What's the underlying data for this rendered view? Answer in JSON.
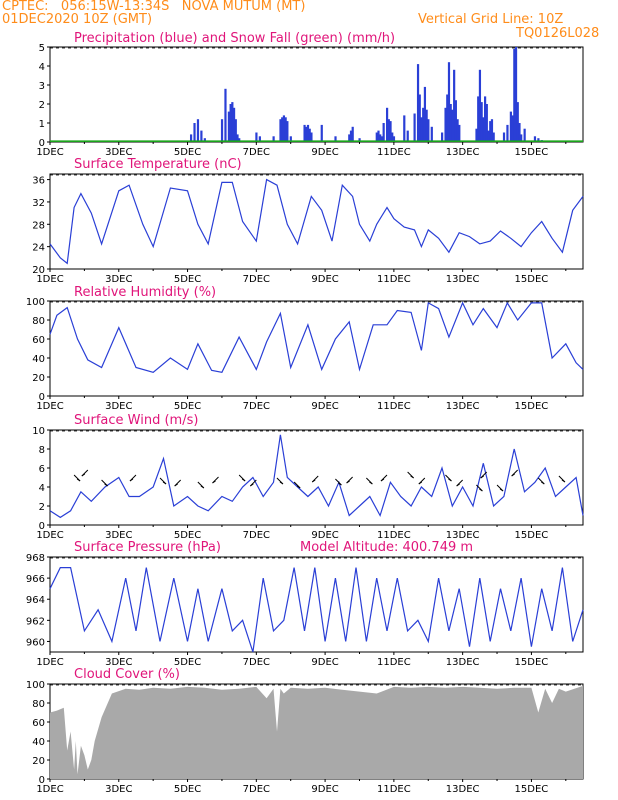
{
  "header": {
    "station": "CPTEC:   056:15W-13:34S   NOVA MUTUM (MT)",
    "run": "01DEC2020 10Z (GMT)",
    "grid_note": "Vertical Grid Line: 10Z",
    "code": "TQ0126L028"
  },
  "colors": {
    "header": "#ff8c1a",
    "title": "#e0157a",
    "line": "#2a3fd6",
    "snow": "#1aa51a",
    "cloud": "#a9a9a9"
  },
  "chart_data": [
    {
      "type": "bar",
      "title": "Precipitation (blue) and Snow Fall (green) (mm/h)",
      "xlabel": "",
      "ylabel": "",
      "ylim": [
        0,
        5
      ],
      "yticks": [
        0,
        1,
        2,
        3,
        4,
        5
      ],
      "xticks": [
        "1DEC",
        "3DEC",
        "5DEC",
        "7DEC",
        "9DEC",
        "11DEC",
        "13DEC",
        "15DEC"
      ],
      "x_day_range": [
        0,
        15.5
      ],
      "series": [
        {
          "name": "Precipitation",
          "x": [
            4.1,
            4.2,
            4.3,
            4.4,
            4.5,
            5.0,
            5.1,
            5.2,
            5.25,
            5.3,
            5.35,
            5.4,
            5.45,
            5.5,
            6.0,
            6.1,
            6.5,
            6.7,
            6.75,
            6.8,
            6.85,
            6.9,
            7.0,
            7.4,
            7.45,
            7.5,
            7.55,
            7.6,
            7.9,
            8.3,
            8.7,
            8.75,
            8.8,
            9.0,
            9.5,
            9.55,
            9.6,
            9.65,
            9.7,
            9.8,
            9.85,
            9.9,
            9.95,
            10.0,
            10.3,
            10.4,
            10.6,
            10.7,
            10.75,
            10.8,
            10.85,
            10.9,
            10.95,
            11.0,
            11.1,
            11.4,
            11.5,
            11.55,
            11.6,
            11.65,
            11.7,
            11.75,
            11.8,
            11.85,
            11.9,
            12.4,
            12.45,
            12.5,
            12.55,
            12.6,
            12.65,
            12.7,
            12.75,
            12.8,
            12.85,
            12.9,
            13.2,
            13.3,
            13.4,
            13.45,
            13.5,
            13.55,
            13.6,
            13.65,
            13.7,
            13.8,
            14.1,
            14.2,
            14.3
          ],
          "values": [
            0.4,
            1.0,
            1.2,
            0.6,
            0.2,
            1.2,
            2.8,
            1.6,
            2.0,
            2.1,
            1.8,
            1.2,
            0.4,
            0.2,
            0.5,
            0.3,
            0.3,
            1.2,
            1.3,
            1.4,
            1.3,
            1.1,
            0.3,
            0.9,
            0.8,
            0.9,
            0.7,
            0.5,
            0.9,
            0.3,
            0.4,
            0.6,
            0.8,
            0.2,
            0.5,
            0.6,
            0.4,
            0.3,
            1.0,
            1.8,
            1.2,
            1.1,
            0.5,
            0.3,
            1.4,
            0.6,
            1.5,
            4.1,
            2.5,
            1.3,
            1.8,
            2.9,
            1.7,
            1.2,
            0.8,
            0.5,
            1.8,
            2.5,
            4.2,
            2.0,
            1.7,
            3.8,
            2.2,
            1.2,
            0.9,
            0.7,
            2.4,
            3.8,
            2.1,
            1.3,
            2.4,
            2.0,
            0.6,
            1.1,
            1.2,
            0.5,
            0.5,
            0.9,
            1.6,
            1.4,
            4.9,
            5.0,
            2.1,
            1.0,
            0.4,
            0.7,
            0.3,
            0.2,
            0.1
          ]
        },
        {
          "name": "Snow Fall",
          "values": [
            0
          ]
        }
      ]
    },
    {
      "type": "line",
      "title": "Surface Temperature (nC)",
      "ylim": [
        20,
        37
      ],
      "yticks": [
        20,
        24,
        28,
        32,
        36
      ],
      "xticks": [
        "1DEC",
        "3DEC",
        "5DEC",
        "7DEC",
        "9DEC",
        "11DEC",
        "13DEC",
        "15DEC"
      ],
      "x": [
        0,
        0.3,
        0.5,
        0.7,
        0.9,
        1.2,
        1.5,
        2.0,
        2.3,
        2.7,
        3.0,
        3.5,
        4.0,
        4.3,
        4.6,
        5.0,
        5.3,
        5.6,
        6.0,
        6.3,
        6.6,
        6.9,
        7.2,
        7.6,
        7.9,
        8.2,
        8.5,
        8.8,
        9.0,
        9.3,
        9.5,
        9.8,
        10.0,
        10.3,
        10.6,
        10.8,
        11.0,
        11.3,
        11.6,
        11.9,
        12.2,
        12.5,
        12.8,
        13.1,
        13.4,
        13.7,
        14.0,
        14.3,
        14.6,
        14.9,
        15.2,
        15.5
      ],
      "values": [
        24.5,
        22,
        21,
        31,
        33.5,
        30,
        24.5,
        34,
        35,
        28,
        24,
        34.5,
        34,
        28,
        24.5,
        35.5,
        35.5,
        28.5,
        25,
        36,
        35,
        28,
        24.5,
        33,
        30.5,
        25,
        35,
        33,
        28,
        25,
        28,
        31,
        29,
        27.5,
        27,
        24,
        27,
        25.5,
        23,
        26.5,
        25.8,
        24.5,
        25,
        26.8,
        25.5,
        24,
        26.5,
        28.5,
        25.5,
        23,
        30.5,
        33
      ]
    },
    {
      "type": "line",
      "title": "Relative Humidity (%)",
      "ylim": [
        0,
        100
      ],
      "yticks": [
        0,
        20,
        40,
        60,
        80,
        100
      ],
      "xticks": [
        "1DEC",
        "3DEC",
        "5DEC",
        "7DEC",
        "9DEC",
        "11DEC",
        "13DEC",
        "15DEC"
      ],
      "x": [
        0,
        0.2,
        0.5,
        0.8,
        1.1,
        1.5,
        2.0,
        2.5,
        3.0,
        3.5,
        4.0,
        4.3,
        4.7,
        5.0,
        5.5,
        6.0,
        6.3,
        6.7,
        7.0,
        7.5,
        7.9,
        8.3,
        8.7,
        9.0,
        9.4,
        9.8,
        10.1,
        10.5,
        10.8,
        11.0,
        11.3,
        11.6,
        12.0,
        12.3,
        12.6,
        13.0,
        13.3,
        13.6,
        14.0,
        14.3,
        14.6,
        15.0,
        15.3,
        15.5
      ],
      "values": [
        65,
        85,
        93,
        60,
        38,
        30,
        72,
        30,
        25,
        40,
        28,
        55,
        27,
        25,
        62,
        28,
        57,
        87,
        30,
        75,
        28,
        60,
        78,
        28,
        75,
        75,
        90,
        88,
        48,
        98,
        92,
        62,
        98,
        75,
        92,
        72,
        98,
        80,
        98,
        98,
        40,
        55,
        35,
        28
      ]
    },
    {
      "type": "line",
      "title": "Surface Wind (m/s)",
      "ylim": [
        0,
        10
      ],
      "yticks": [
        0,
        2,
        4,
        6,
        8,
        10
      ],
      "xticks": [
        "1DEC",
        "3DEC",
        "5DEC",
        "7DEC",
        "9DEC",
        "11DEC",
        "13DEC",
        "15DEC"
      ],
      "x": [
        0,
        0.3,
        0.6,
        0.9,
        1.2,
        1.6,
        2.0,
        2.3,
        2.6,
        3.0,
        3.3,
        3.6,
        4.0,
        4.3,
        4.6,
        5.0,
        5.3,
        5.6,
        5.9,
        6.2,
        6.5,
        6.7,
        6.9,
        7.2,
        7.5,
        7.8,
        8.1,
        8.4,
        8.7,
        9.0,
        9.3,
        9.6,
        9.9,
        10.2,
        10.5,
        10.8,
        11.1,
        11.4,
        11.7,
        12.0,
        12.3,
        12.6,
        12.9,
        13.2,
        13.5,
        13.8,
        14.1,
        14.4,
        14.7,
        15.0,
        15.3,
        15.5
      ],
      "values": [
        1.5,
        0.8,
        1.5,
        3.5,
        2.5,
        4,
        5,
        3,
        3,
        4,
        7,
        2,
        3,
        2,
        1.5,
        3,
        2.5,
        4,
        5,
        3,
        4.5,
        9.5,
        5,
        4,
        3,
        4,
        2,
        4.5,
        1,
        2,
        3,
        1,
        4.5,
        3,
        2,
        4,
        3,
        6,
        2,
        4,
        2,
        6.5,
        2,
        3,
        8,
        3.5,
        4.5,
        6,
        3,
        4,
        5,
        1
      ]
    },
    {
      "type": "line",
      "title": "Surface Pressure (hPa)",
      "ylim": [
        959,
        968
      ],
      "yticks": [
        960,
        962,
        964,
        966,
        968
      ],
      "xticks": [
        "1DEC",
        "3DEC",
        "5DEC",
        "7DEC",
        "9DEC",
        "11DEC",
        "13DEC",
        "15DEC"
      ],
      "x": [
        0,
        0.3,
        0.6,
        1.0,
        1.4,
        1.8,
        2.2,
        2.5,
        2.8,
        3.2,
        3.6,
        4.0,
        4.3,
        4.6,
        5.0,
        5.3,
        5.6,
        5.9,
        6.2,
        6.5,
        6.8,
        7.1,
        7.4,
        7.7,
        8.0,
        8.3,
        8.6,
        8.9,
        9.2,
        9.5,
        9.8,
        10.1,
        10.4,
        10.7,
        11.0,
        11.3,
        11.6,
        11.9,
        12.2,
        12.5,
        12.8,
        13.1,
        13.4,
        13.7,
        14.0,
        14.3,
        14.6,
        14.9,
        15.2,
        15.5
      ],
      "values": [
        965,
        967,
        967,
        961,
        963,
        960,
        966,
        961,
        967,
        960,
        966,
        960,
        965,
        960,
        965,
        961,
        962,
        959,
        966,
        961,
        962,
        967,
        961,
        967,
        960,
        966,
        960,
        967,
        960,
        966,
        961,
        966,
        961,
        962,
        960,
        966,
        961,
        965,
        959.5,
        966,
        960,
        965,
        961,
        966,
        959.5,
        965,
        961,
        967,
        960,
        963
      ]
    },
    {
      "type": "area",
      "title": "Cloud Cover (%)",
      "ylim": [
        0,
        100
      ],
      "yticks": [
        0,
        20,
        40,
        60,
        80,
        100
      ],
      "xticks": [
        "1DEC",
        "3DEC",
        "5DEC",
        "7DEC",
        "9DEC",
        "11DEC",
        "13DEC",
        "15DEC"
      ],
      "x": [
        0,
        0.2,
        0.4,
        0.5,
        0.6,
        0.7,
        0.75,
        0.8,
        0.9,
        1.0,
        1.1,
        1.2,
        1.3,
        1.5,
        1.8,
        2.2,
        2.6,
        3.0,
        3.5,
        4.0,
        4.5,
        5.0,
        5.5,
        6.0,
        6.3,
        6.5,
        6.6,
        6.7,
        6.8,
        7.0,
        7.5,
        8.0,
        8.5,
        9.0,
        9.5,
        10.0,
        10.5,
        11.0,
        11.5,
        12.0,
        12.5,
        13.0,
        13.5,
        14.0,
        14.2,
        14.4,
        14.6,
        14.8,
        15.0,
        15.5
      ],
      "values": [
        70,
        72,
        75,
        30,
        50,
        10,
        40,
        5,
        35,
        25,
        10,
        20,
        40,
        65,
        90,
        95,
        94,
        96,
        95,
        97,
        96,
        94,
        95,
        97,
        85,
        95,
        50,
        95,
        90,
        96,
        95,
        96,
        94,
        92,
        90,
        97,
        96,
        97,
        96,
        97,
        96,
        95,
        96,
        96,
        70,
        95,
        80,
        95,
        92,
        98
      ]
    }
  ],
  "panels": {
    "p1": {
      "title": "Precipitation (blue) and Snow Fall (green) (mm/h)"
    },
    "p2": {
      "title": "Surface Temperature (nC)"
    },
    "p3": {
      "title": "Relative Humidity (%)"
    },
    "p4": {
      "title": "Surface Wind (m/s)"
    },
    "p5": {
      "title": "Surface Pressure (hPa)",
      "altitude": "Model Altitude: 400.749 m"
    },
    "p6": {
      "title": "Cloud Cover (%)"
    }
  }
}
